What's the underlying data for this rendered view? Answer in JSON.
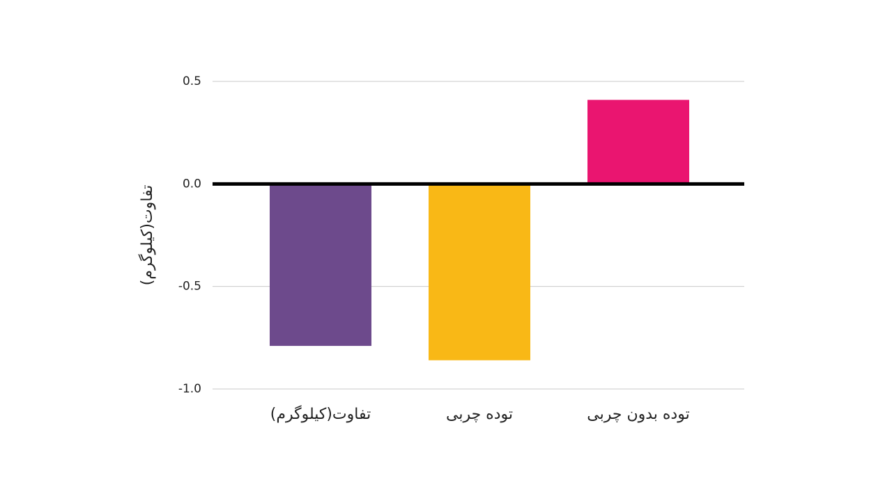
{
  "chart_data": {
    "type": "bar",
    "y_label": "تفاوت(کیلوگرم)",
    "categories": [
      "تفاوت(کیلوگرم)",
      "توده چربی",
      "توده بدون چربی"
    ],
    "values": [
      -0.79,
      -0.86,
      0.41
    ],
    "colors": [
      "#6d4a8c",
      "#f9b816",
      "#ea1570"
    ],
    "ylim": [
      -1.0,
      0.5
    ],
    "yticks": [
      0.5,
      {
        "value": 0,
        "label": "0.0"
      },
      -0.5,
      {
        "value": -1.0,
        "label": "-1.0"
      }
    ],
    "grid": true
  }
}
